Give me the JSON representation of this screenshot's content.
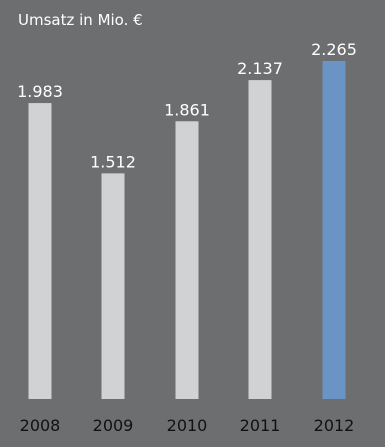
{
  "chart_data": {
    "type": "bar",
    "title": "Umsatz in Mio. €",
    "categories": [
      "2008",
      "2009",
      "2010",
      "2011",
      "2012"
    ],
    "values": [
      1983,
      1512,
      1861,
      2137,
      2265
    ],
    "value_labels": [
      "1.983",
      "1.512",
      "1.861",
      "2.137",
      "2.265"
    ],
    "ylim": [
      0,
      2265
    ],
    "grid": false,
    "legend": "none",
    "colors": {
      "background": "#6d6e70",
      "bar": "#d1d2d4",
      "highlight_bar": "#6a93c6",
      "highlight_category": "2012",
      "title_text": "#ffffff",
      "value_text": "#ffffff",
      "axis_text": "#111111"
    }
  }
}
